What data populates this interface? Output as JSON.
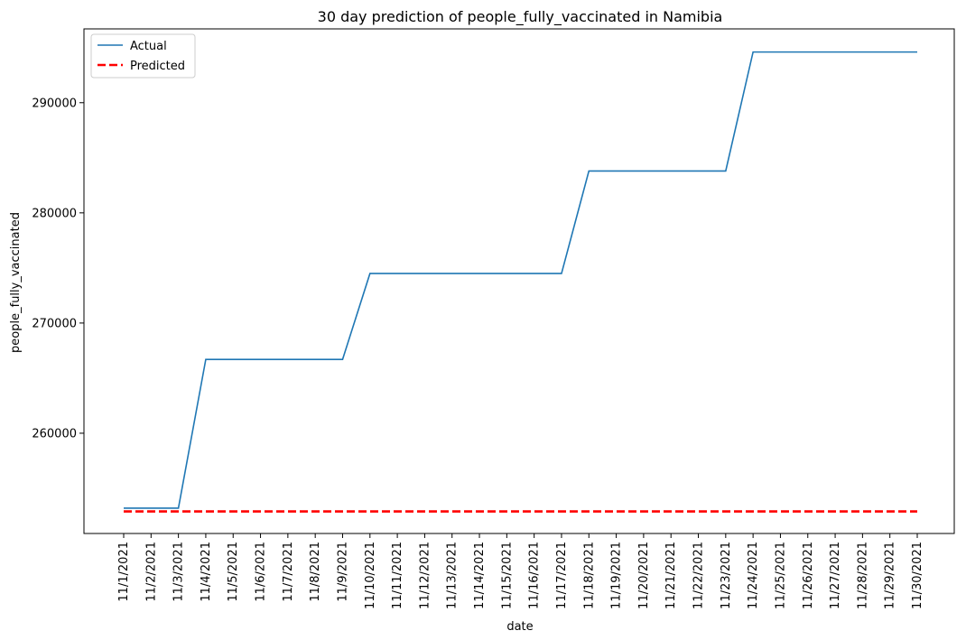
{
  "chart_data": {
    "type": "line",
    "title": "30 day prediction of people_fully_vaccinated in Namibia",
    "xlabel": "date",
    "ylabel": "people_fully_vaccinated",
    "x": [
      "11/1/2021",
      "11/2/2021",
      "11/3/2021",
      "11/4/2021",
      "11/5/2021",
      "11/6/2021",
      "11/7/2021",
      "11/8/2021",
      "11/9/2021",
      "11/10/2021",
      "11/11/2021",
      "11/12/2021",
      "11/13/2021",
      "11/14/2021",
      "11/15/2021",
      "11/16/2021",
      "11/17/2021",
      "11/18/2021",
      "11/19/2021",
      "11/20/2021",
      "11/21/2021",
      "11/22/2021",
      "11/23/2021",
      "11/24/2021",
      "11/25/2021",
      "11/26/2021",
      "11/27/2021",
      "11/28/2021",
      "11/29/2021",
      "11/30/2021"
    ],
    "series": [
      {
        "name": "Actual",
        "color": "#1f77b4",
        "style": "solid",
        "values": [
          253200,
          253200,
          253200,
          266700,
          266700,
          266700,
          266700,
          266700,
          266700,
          274500,
          274500,
          274500,
          274500,
          274500,
          274500,
          274500,
          274500,
          283800,
          283800,
          283800,
          283800,
          283800,
          283800,
          294600,
          294600,
          294600,
          294600,
          294600,
          294600,
          294600
        ]
      },
      {
        "name": "Predicted",
        "color": "#ff0000",
        "style": "dashed",
        "values": [
          252900,
          252900,
          252900,
          252900,
          252900,
          252900,
          252900,
          252900,
          252900,
          252900,
          252900,
          252900,
          252900,
          252900,
          252900,
          252900,
          252900,
          252900,
          252900,
          252900,
          252900,
          252900,
          252900,
          252900,
          252900,
          252900,
          252900,
          252900,
          252900,
          252900
        ]
      }
    ],
    "yticks": [
      260000,
      270000,
      280000,
      290000
    ],
    "ylim": [
      250900,
      296700
    ],
    "legend_position": "top-left",
    "grid": false
  }
}
